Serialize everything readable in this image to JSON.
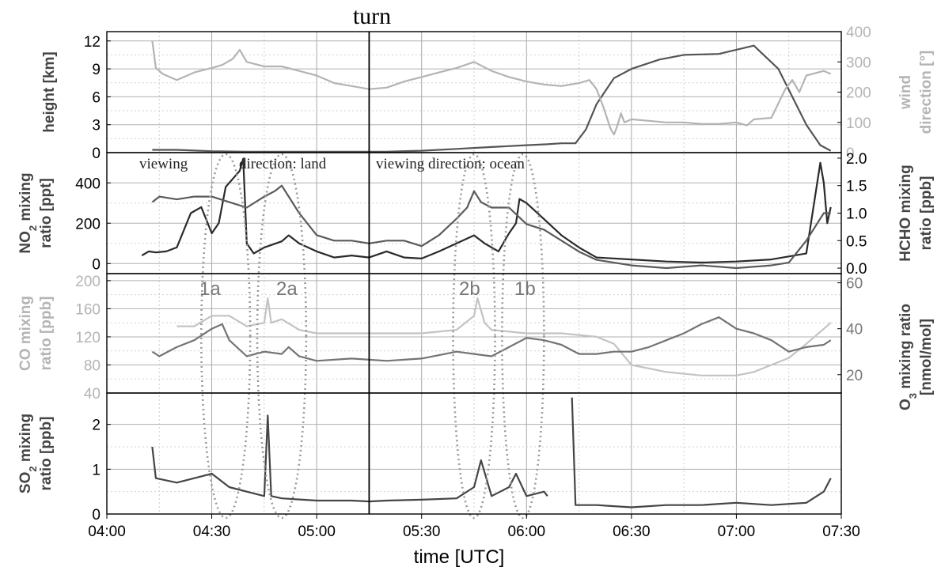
{
  "chart_data": {
    "type": "line",
    "title": "turn",
    "xlabel": "time [UTC]",
    "x_ticks": [
      "04:00",
      "04:30",
      "05:00",
      "05:30",
      "06:00",
      "06:30",
      "07:00",
      "07:30"
    ],
    "xlim_minutes": [
      240,
      450
    ],
    "turn_time": "05:15",
    "grid": true,
    "panels": [
      {
        "id": "height-wind",
        "left_axis": {
          "label": "height [km]",
          "range": [
            0,
            13
          ],
          "ticks": [
            "0",
            "3",
            "6",
            "9",
            "12"
          ]
        },
        "right_axis": {
          "label_line1": "wind",
          "label_line2": "direction [°]",
          "range": [
            0,
            400
          ],
          "ticks": [
            "0",
            "100",
            "200",
            "300",
            "400"
          ]
        },
        "series": [
          {
            "axis": "left",
            "color": "#555555",
            "x": [
              "04:13",
              "04:20",
              "04:30",
              "04:40",
              "04:50",
              "05:00",
              "05:10",
              "05:20",
              "05:30",
              "05:40",
              "05:50",
              "06:00",
              "06:06",
              "06:10",
              "06:14",
              "06:17",
              "06:20",
              "06:25",
              "06:30",
              "06:38",
              "06:45",
              "06:55",
              "07:05",
              "07:12",
              "07:20",
              "07:24",
              "07:27"
            ],
            "y": [
              0.3,
              0.3,
              0.15,
              0.1,
              0.1,
              0.1,
              0.1,
              0.1,
              0.2,
              0.4,
              0.6,
              0.8,
              0.9,
              1.0,
              1.0,
              2.5,
              5.2,
              8.0,
              9.0,
              10.0,
              10.5,
              10.6,
              11.5,
              9.0,
              3.0,
              0.8,
              0.2
            ]
          },
          {
            "axis": "right",
            "color": "#b4b4b4",
            "x": [
              "04:13",
              "04:14",
              "04:16",
              "04:20",
              "04:25",
              "04:30",
              "04:33",
              "04:36",
              "04:38",
              "04:40",
              "04:45",
              "04:50",
              "04:55",
              "05:00",
              "05:05",
              "05:10",
              "05:15",
              "05:20",
              "05:25",
              "05:30",
              "05:35",
              "05:40",
              "05:45",
              "05:50",
              "05:55",
              "06:00",
              "06:05",
              "06:10",
              "06:15",
              "06:18",
              "06:20",
              "06:22",
              "06:24",
              "06:25",
              "06:26",
              "06:27",
              "06:28",
              "06:30",
              "06:35",
              "06:40",
              "06:45",
              "06:50",
              "06:55",
              "07:00",
              "07:03",
              "07:05",
              "07:10",
              "07:14",
              "07:16",
              "07:18",
              "07:20",
              "07:25",
              "07:27"
            ],
            "y": [
              370,
              280,
              260,
              240,
              265,
              280,
              290,
              310,
              340,
              300,
              285,
              285,
              270,
              255,
              230,
              220,
              210,
              215,
              235,
              250,
              265,
              280,
              300,
              270,
              250,
              235,
              225,
              220,
              230,
              240,
              210,
              150,
              80,
              60,
              90,
              130,
              100,
              110,
              105,
              100,
              100,
              95,
              95,
              100,
              90,
              110,
              115,
              210,
              240,
              200,
              255,
              270,
              260
            ]
          }
        ]
      },
      {
        "id": "no2-hcho",
        "left_axis": {
          "label_main": "NO",
          "label_sub": "2",
          "label_rest": " mixing",
          "label_line2": "ratio [ppt]",
          "range": [
            -50,
            550
          ],
          "ticks": [
            "0",
            "200",
            "400"
          ]
        },
        "right_axis": {
          "label_line1": "HCHO mixing",
          "label_line2": "ratio [ppb]",
          "range": [
            -0.1,
            2.1
          ],
          "ticks": [
            "0.0",
            "0.5",
            "1.0",
            "1.5",
            "2.0"
          ]
        },
        "annotations": [
          "viewing",
          "direction: land",
          "viewing direction: ocean"
        ],
        "series": [
          {
            "axis": "left",
            "color": "#2a2a2a",
            "x": [
              "04:10",
              "04:12",
              "04:14",
              "04:17",
              "04:20",
              "04:24",
              "04:27",
              "04:30",
              "04:32",
              "04:34",
              "04:36",
              "04:38",
              "04:39",
              "04:40",
              "04:42",
              "04:45",
              "04:50",
              "04:52",
              "04:55",
              "05:00",
              "05:05",
              "05:10",
              "05:15",
              "05:20",
              "05:25",
              "05:30",
              "05:35",
              "05:40",
              "05:45",
              "05:48",
              "05:52",
              "05:55",
              "05:57",
              "05:58",
              "06:00",
              "06:05",
              "06:10",
              "06:15",
              "06:20",
              "06:30",
              "06:40",
              "06:50",
              "07:00",
              "07:10",
              "07:20",
              "07:24",
              "07:25",
              "07:26",
              "07:27"
            ],
            "y": [
              40,
              60,
              55,
              60,
              80,
              250,
              280,
              150,
              200,
              380,
              420,
              460,
              520,
              100,
              50,
              80,
              110,
              140,
              100,
              60,
              30,
              40,
              30,
              60,
              30,
              25,
              60,
              100,
              140,
              100,
              60,
              150,
              200,
              320,
              300,
              220,
              140,
              80,
              30,
              20,
              10,
              5,
              10,
              20,
              50,
              500,
              400,
              200,
              280
            ]
          },
          {
            "axis": "right",
            "color": "#5a5a5a",
            "x": [
              "04:13",
              "04:15",
              "04:20",
              "04:25",
              "04:30",
              "04:35",
              "04:40",
              "04:45",
              "04:48",
              "04:50",
              "04:52",
              "04:55",
              "05:00",
              "05:05",
              "05:10",
              "05:15",
              "05:20",
              "05:25",
              "05:30",
              "05:35",
              "05:40",
              "05:43",
              "05:45",
              "05:47",
              "05:50",
              "05:55",
              "06:00",
              "06:05",
              "06:10",
              "06:15",
              "06:20",
              "06:25",
              "06:30",
              "06:40",
              "06:50",
              "07:00",
              "07:10",
              "07:15",
              "07:20",
              "07:25",
              "07:27"
            ],
            "y": [
              1.2,
              1.3,
              1.25,
              1.3,
              1.3,
              1.2,
              1.1,
              1.3,
              1.4,
              1.5,
              1.3,
              1.0,
              0.6,
              0.5,
              0.5,
              0.45,
              0.5,
              0.5,
              0.4,
              0.6,
              0.9,
              1.1,
              1.4,
              1.2,
              1.1,
              1.1,
              0.8,
              0.7,
              0.5,
              0.3,
              0.15,
              0.1,
              0.05,
              0.0,
              0.05,
              0.0,
              0.05,
              0.1,
              0.5,
              1.0,
              1.0
            ]
          }
        ]
      },
      {
        "id": "co-o3",
        "left_axis": {
          "label_line1": "CO mixing",
          "label_line2": "ratio [ppb]",
          "range": [
            40,
            210
          ],
          "ticks": [
            "40",
            "80",
            "120",
            "160",
            "200"
          ]
        },
        "right_axis": {
          "label_main": "O",
          "label_sub": "3",
          "label_rest": " mixing ratio",
          "label_line2": "[nmol/mol]",
          "range": [
            12,
            64
          ],
          "ticks": [
            "20",
            "40",
            "60"
          ]
        },
        "annotations": [
          "1a",
          "2a",
          "2b",
          "1b"
        ],
        "series": [
          {
            "axis": "left",
            "color": "#c3c3c3",
            "x": [
              "04:20",
              "04:25",
              "04:30",
              "04:35",
              "04:40",
              "04:45",
              "04:46",
              "04:47",
              "04:50",
              "04:55",
              "05:00",
              "05:10",
              "05:20",
              "05:30",
              "05:40",
              "05:45",
              "05:46",
              "05:48",
              "05:50",
              "06:00",
              "06:10",
              "06:20",
              "06:25",
              "06:30",
              "06:35",
              "06:40",
              "06:50",
              "07:00",
              "07:05",
              "07:10",
              "07:15",
              "07:20",
              "07:27"
            ],
            "y": [
              135,
              135,
              150,
              150,
              135,
              140,
              175,
              140,
              145,
              130,
              125,
              125,
              125,
              125,
              130,
              150,
              175,
              140,
              130,
              125,
              125,
              120,
              110,
              80,
              75,
              70,
              65,
              65,
              70,
              80,
              90,
              110,
              140
            ]
          },
          {
            "axis": "right",
            "color": "#747474",
            "x": [
              "04:13",
              "04:15",
              "04:20",
              "04:25",
              "04:30",
              "04:33",
              "04:35",
              "04:40",
              "04:45",
              "04:50",
              "04:52",
              "04:55",
              "05:00",
              "05:10",
              "05:20",
              "05:30",
              "05:40",
              "05:45",
              "05:50",
              "05:55",
              "06:00",
              "06:05",
              "06:10",
              "06:15",
              "06:20",
              "06:25",
              "06:30",
              "06:35",
              "06:40",
              "06:45",
              "06:50",
              "06:55",
              "07:00",
              "07:05",
              "07:10",
              "07:15",
              "07:20",
              "07:25",
              "07:27"
            ],
            "y": [
              30,
              28,
              32,
              35,
              40,
              42,
              35,
              28,
              30,
              29,
              32,
              28,
              26,
              27,
              26,
              27,
              30,
              29,
              28,
              32,
              36,
              35,
              33,
              29,
              29,
              30,
              30,
              32,
              35,
              38,
              42,
              45,
              40,
              38,
              35,
              30,
              32,
              33,
              35
            ]
          }
        ]
      },
      {
        "id": "so2",
        "left_axis": {
          "label_main": "SO",
          "label_sub": "2",
          "label_rest": " mixing",
          "label_line2": "ratio [ppb]",
          "range": [
            0,
            2.7
          ],
          "ticks": [
            "0",
            "1",
            "2"
          ]
        },
        "series": [
          {
            "axis": "left",
            "color": "#454545",
            "x": [
              "04:13",
              "04:14",
              "04:20",
              "04:25",
              "04:30",
              "04:35",
              "04:40",
              "04:45",
              "04:46",
              "04:47",
              "04:50",
              "05:00",
              "05:10",
              "05:15",
              "05:20",
              "05:30",
              "05:40",
              "05:45",
              "05:47",
              "05:50",
              "05:55",
              "05:57",
              "06:00",
              "06:05",
              "06:06",
              "06:12",
              "06:13",
              "06:14",
              "06:20",
              "06:30",
              "06:40",
              "06:50",
              "07:00",
              "07:10",
              "07:20",
              "07:25",
              "07:27"
            ],
            "y": [
              1.5,
              0.8,
              0.7,
              0.8,
              0.9,
              0.6,
              0.5,
              0.4,
              2.2,
              0.4,
              0.35,
              0.3,
              0.3,
              0.28,
              0.3,
              0.32,
              0.35,
              0.6,
              1.2,
              0.4,
              0.6,
              0.9,
              0.4,
              0.5,
              0.4,
              null,
              2.6,
              0.2,
              0.2,
              0.15,
              0.2,
              0.2,
              0.25,
              0.2,
              0.25,
              0.5,
              0.8
            ]
          }
        ]
      }
    ],
    "highlight_ellipses": [
      {
        "label": "1a",
        "center": "04:34",
        "half_width_min": 7
      },
      {
        "label": "2a",
        "center": "04:50",
        "half_width_min": 7
      },
      {
        "label": "2b",
        "center": "05:45",
        "half_width_min": 6
      },
      {
        "label": "1b",
        "center": "05:59",
        "half_width_min": 6
      }
    ]
  }
}
